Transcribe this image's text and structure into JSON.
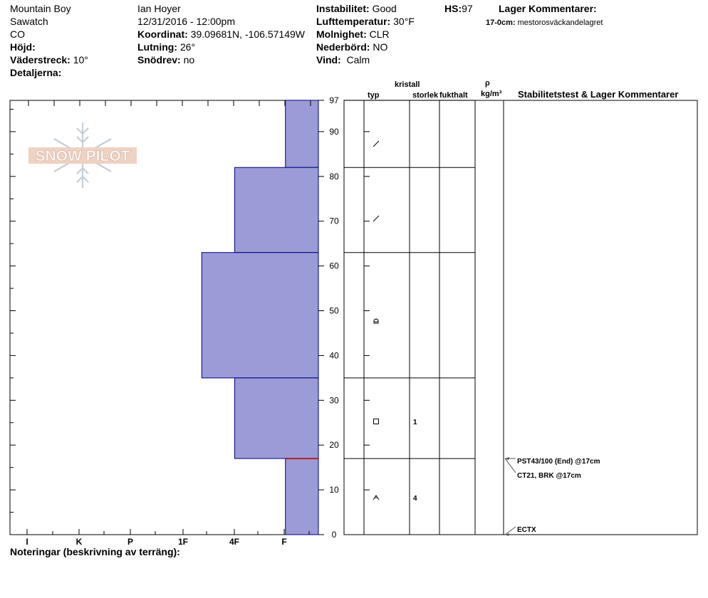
{
  "header": {
    "location": "Mountain Boy",
    "range": "Sawatch",
    "state": "CO",
    "hojd_label": "Höjd:",
    "aspect_label": "Väderstreck:",
    "aspect_value": "10°",
    "details_label": "Detaljerna:",
    "observer": "Ian Hoyer",
    "datetime": "12/31/2016 - 12:00pm",
    "coord_label": "Koordinat:",
    "coord_value": "39.09681N, -106.57149W",
    "slope_label": "Lutning:",
    "slope_value": "26°",
    "drift_label": "Snödrev:",
    "drift_value": "no",
    "instab_label": "Instabilitet:",
    "instab_value": "Good",
    "airtemp_label": "Lufttemperatur:",
    "airtemp_value": "30°F",
    "cloud_label": "Molnighet:",
    "cloud_value": "CLR",
    "precip_label": "Nederbörd:",
    "precip_value": "NO",
    "wind_label": "Vind:",
    "wind_value": "Calm",
    "hs_label": "HS:",
    "hs_value": "97",
    "layer_comments_label": "Lager Kommentarer:",
    "layer_comment_depth": "17-0cm:",
    "layer_comment_text": "mestorosväckandelagret"
  },
  "columns": {
    "typ": "typ",
    "kristall": "kristall",
    "storlek": "storlek",
    "fukthalt": "fukthalt",
    "rho": "ρ",
    "density_unit": "kg/m³",
    "stability": "Stabilitetstest & Lager Kommentarer"
  },
  "notes_label": "Noteringar (beskrivning av terräng):",
  "logo_text": "SNOW PILOT",
  "colors": {
    "layer_fill": "#9b9bd7",
    "layer_stroke": "#000080",
    "weak_layer": "#b22222"
  },
  "chart_data": {
    "type": "bar",
    "title": "",
    "xlabel": "",
    "ylabel": "",
    "x_categories": [
      "I",
      "K",
      "P",
      "1F",
      "4F",
      "F"
    ],
    "ylim": [
      0,
      97
    ],
    "y_ticks": [
      0,
      10,
      20,
      30,
      40,
      50,
      60,
      70,
      80,
      90,
      97
    ],
    "hardness_scale_max": 6,
    "layers": [
      {
        "top": 97,
        "bottom": 82,
        "hardness": 0.65,
        "grain": "decomposing",
        "size": ""
      },
      {
        "top": 82,
        "bottom": 63,
        "hardness": 1.65,
        "grain": "decomposing",
        "size": ""
      },
      {
        "top": 63,
        "bottom": 35,
        "hardness": 2.3,
        "grain": "rounded",
        "size": ""
      },
      {
        "top": 35,
        "bottom": 17,
        "hardness": 1.65,
        "grain": "faceted",
        "size": "1"
      },
      {
        "top": 17,
        "bottom": 0,
        "hardness": 0.65,
        "grain": "depth-hoar",
        "size": "4"
      }
    ],
    "weak_layer": 17,
    "tests": [
      {
        "depth": 17,
        "label": "PST43/100 (End) @17cm"
      },
      {
        "depth": 17,
        "label": "CT21, BRK @17cm"
      },
      {
        "depth": 0,
        "label": "ECTX"
      }
    ]
  }
}
